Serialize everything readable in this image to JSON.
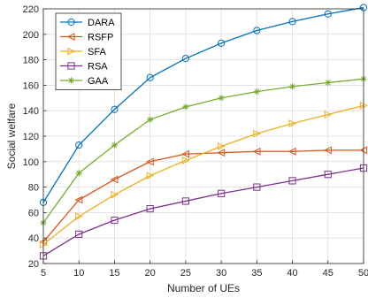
{
  "chart_data": {
    "type": "line",
    "title": "",
    "xlabel": "Number of UEs",
    "ylabel": "Social welfare",
    "x": [
      5,
      10,
      15,
      20,
      25,
      30,
      35,
      40,
      45,
      50
    ],
    "xlim": [
      5,
      50
    ],
    "ylim": [
      20,
      220
    ],
    "xticks": [
      5,
      10,
      15,
      20,
      25,
      30,
      35,
      40,
      45,
      50
    ],
    "yticks": [
      20,
      40,
      60,
      80,
      100,
      120,
      140,
      160,
      180,
      200,
      220
    ],
    "grid": true,
    "legend_position": "top-left",
    "series": [
      {
        "name": "DARA",
        "color": "#0072BD",
        "marker": "circle",
        "values": [
          68,
          113,
          141,
          166,
          181,
          193,
          203,
          210,
          216,
          221
        ]
      },
      {
        "name": "RSFP",
        "color": "#D95319",
        "marker": "triangle-left",
        "values": [
          37,
          70,
          86,
          100,
          106,
          107,
          108,
          108,
          109,
          109
        ]
      },
      {
        "name": "SFA",
        "color": "#EDB120",
        "marker": "triangle-right",
        "values": [
          35,
          57,
          74,
          89,
          101,
          112,
          122,
          130,
          137,
          144
        ]
      },
      {
        "name": "RSA",
        "color": "#7E2F8E",
        "marker": "square",
        "values": [
          26,
          43,
          54,
          63,
          69,
          75,
          80,
          85,
          90,
          95
        ]
      },
      {
        "name": "GAA",
        "color": "#77AC30",
        "marker": "star",
        "values": [
          52,
          91,
          113,
          133,
          143,
          150,
          155,
          159,
          162,
          165
        ]
      }
    ]
  }
}
